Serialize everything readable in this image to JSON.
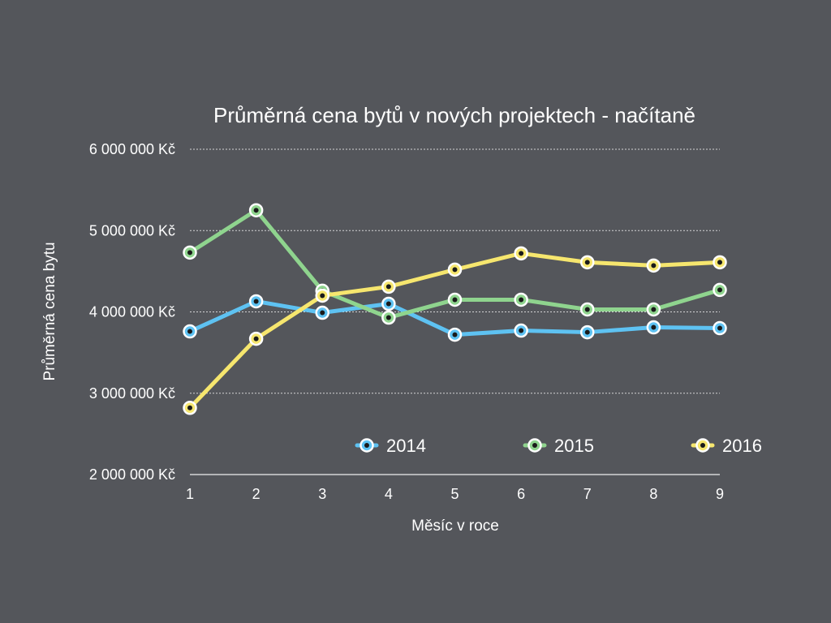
{
  "chart_data": {
    "type": "line",
    "title": "Průměrná cena bytů v nových projektech - načítaně",
    "xlabel": "Měsíc v roce",
    "ylabel": "Průměrná cena bytu",
    "x": [
      1,
      2,
      3,
      4,
      5,
      6,
      7,
      8,
      9
    ],
    "ylim": [
      2000000,
      6000000
    ],
    "yticks": [
      2000000,
      3000000,
      4000000,
      5000000,
      6000000
    ],
    "ytick_labels": [
      "2 000 000 Kč",
      "3 000 000 Kč",
      "4 000 000 Kč",
      "5 000 000 Kč",
      "6 000 000 Kč"
    ],
    "grid": true,
    "legend_position": "bottom-inside",
    "series": [
      {
        "name": "2014",
        "color": "#5ec2f2",
        "values": [
          3760000,
          4130000,
          3990000,
          4100000,
          3720000,
          3770000,
          3750000,
          3810000,
          3800000
        ]
      },
      {
        "name": "2015",
        "color": "#8fd48e",
        "values": [
          4730000,
          5250000,
          4260000,
          3930000,
          4150000,
          4150000,
          4030000,
          4030000,
          4270000
        ]
      },
      {
        "name": "2016",
        "color": "#f6e66e",
        "values": [
          2820000,
          3670000,
          4200000,
          4310000,
          4520000,
          4720000,
          4610000,
          4570000,
          4610000
        ]
      }
    ]
  }
}
